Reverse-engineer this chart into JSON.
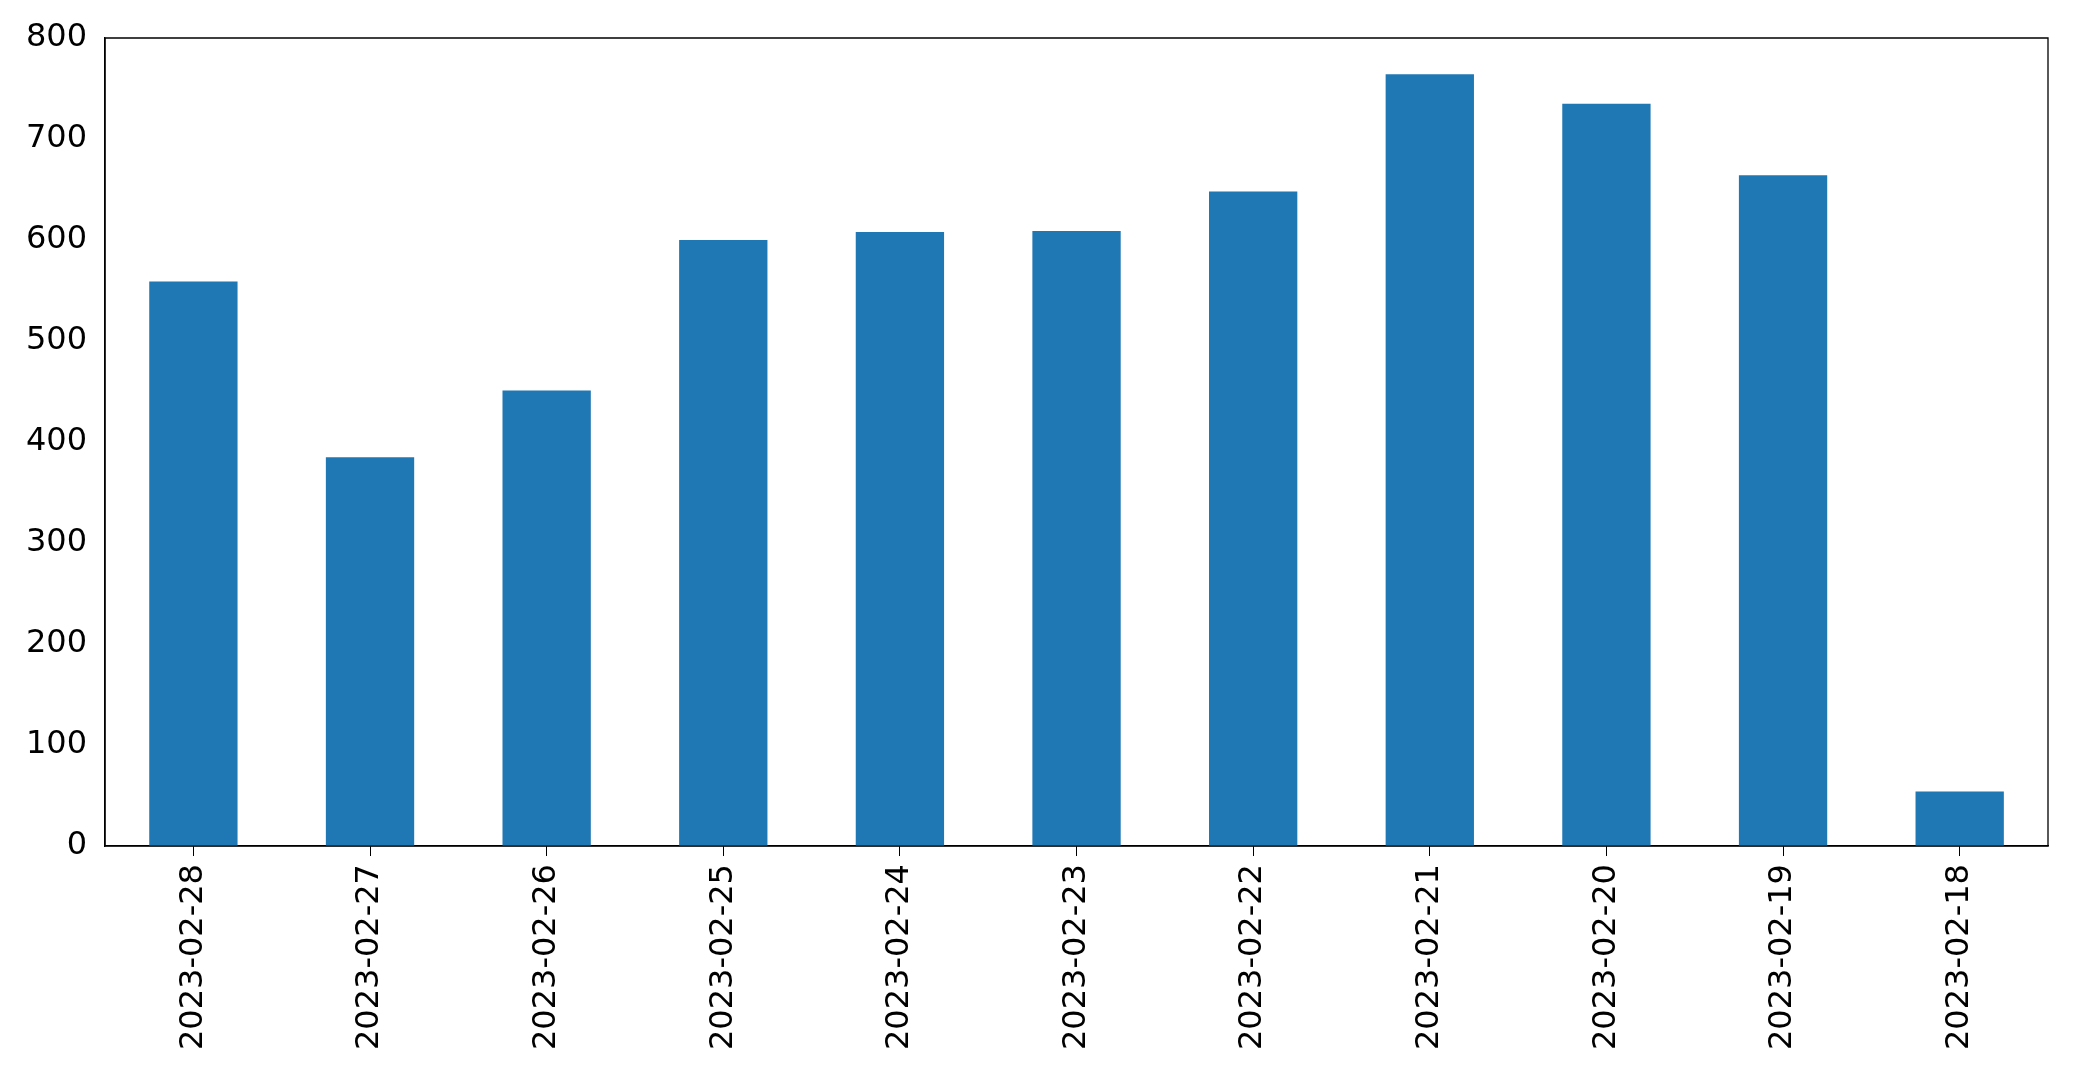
{
  "chart_data": {
    "type": "bar",
    "categories": [
      "2023-02-28",
      "2023-02-27",
      "2023-02-26",
      "2023-02-25",
      "2023-02-24",
      "2023-02-23",
      "2023-02-22",
      "2023-02-21",
      "2023-02-20",
      "2023-02-19",
      "2023-02-18"
    ],
    "values": [
      559,
      385,
      451,
      600,
      608,
      609,
      648,
      764,
      735,
      664,
      54
    ],
    "color": "#1f77b4",
    "ylim": [
      0,
      800
    ],
    "yticks": [
      0,
      100,
      200,
      300,
      400,
      500,
      600,
      700,
      800
    ]
  }
}
